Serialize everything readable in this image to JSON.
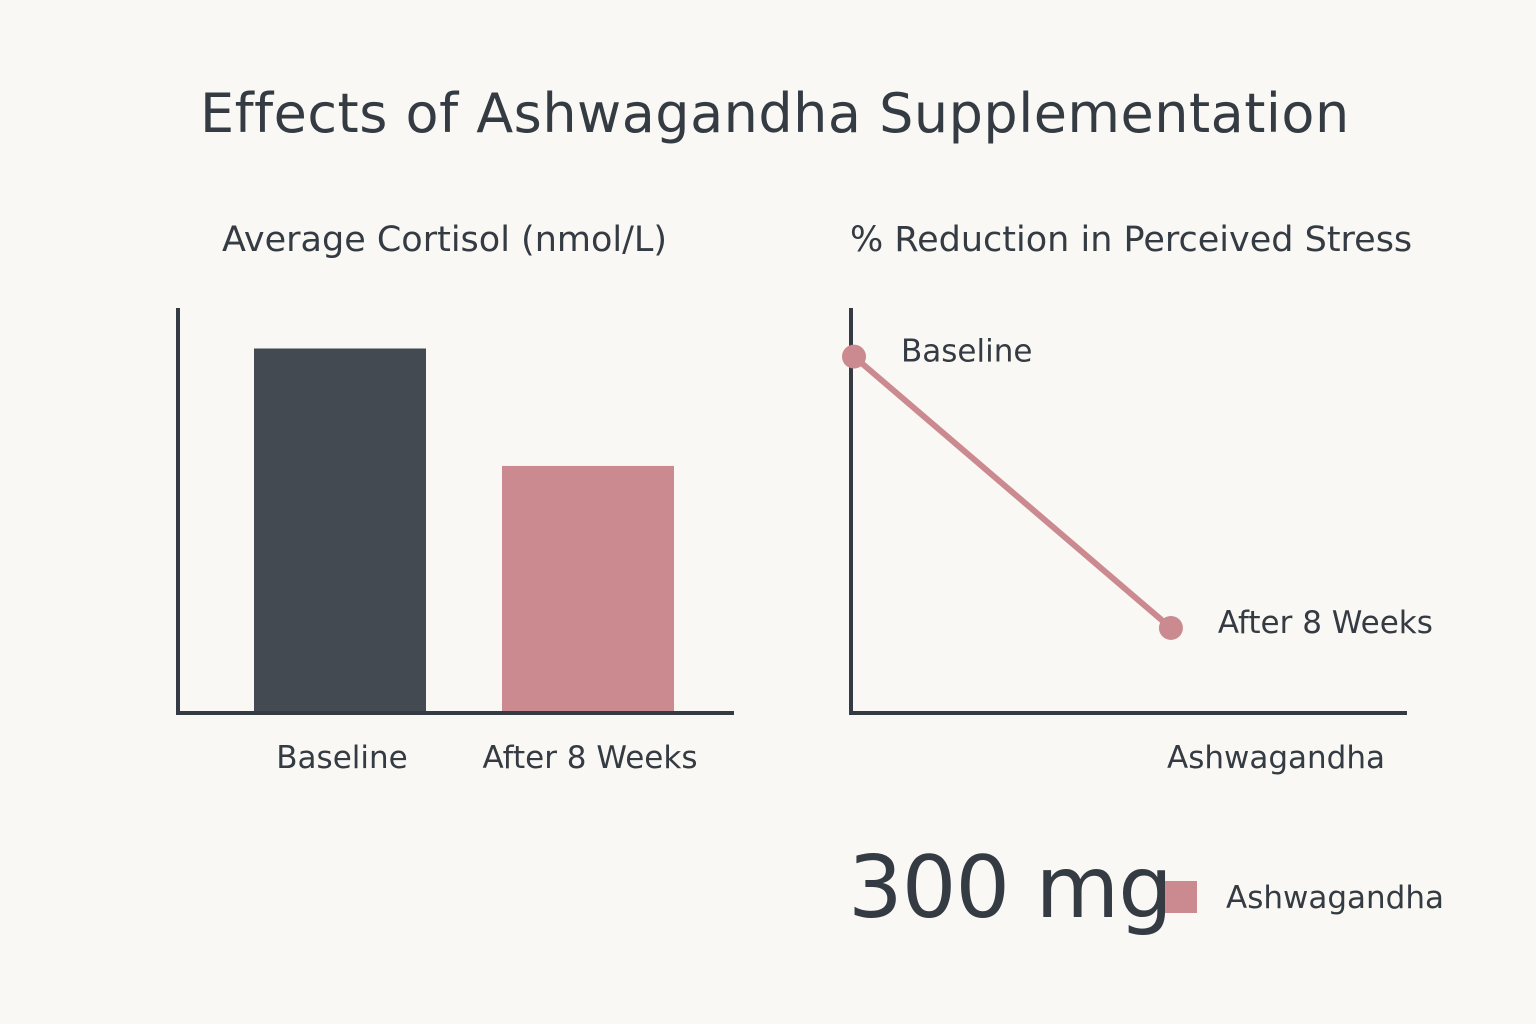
{
  "title": "Effects of Ashwagandha Supplementation",
  "colors": {
    "baseline": "#434a51",
    "ashwagandha": "#cb8a8f",
    "axis": "#343b43"
  },
  "dose": {
    "value": "300",
    "unit": "mg"
  },
  "legend": {
    "label": "Ashwagandha",
    "color": "#cb8a8f"
  },
  "chart_data": [
    {
      "type": "bar",
      "title": "Average Cortisol (nmol/L)",
      "categories": [
        "Baseline",
        "After 8 Weeks"
      ],
      "values": [
        90,
        61
      ],
      "ylim": [
        0,
        100
      ],
      "grid": false
    },
    {
      "type": "line",
      "title": "% Reduction in Perceived Stress",
      "xlabel": "Ashwagandha",
      "series": [
        {
          "points": [
            {
              "x": 0,
              "y": 88,
              "label": "Baseline"
            },
            {
              "x": 57,
              "y": 21,
              "label": "After 8 Weeks"
            }
          ]
        }
      ],
      "xlim": [
        0,
        100
      ],
      "ylim": [
        0,
        100
      ],
      "grid": false
    }
  ]
}
